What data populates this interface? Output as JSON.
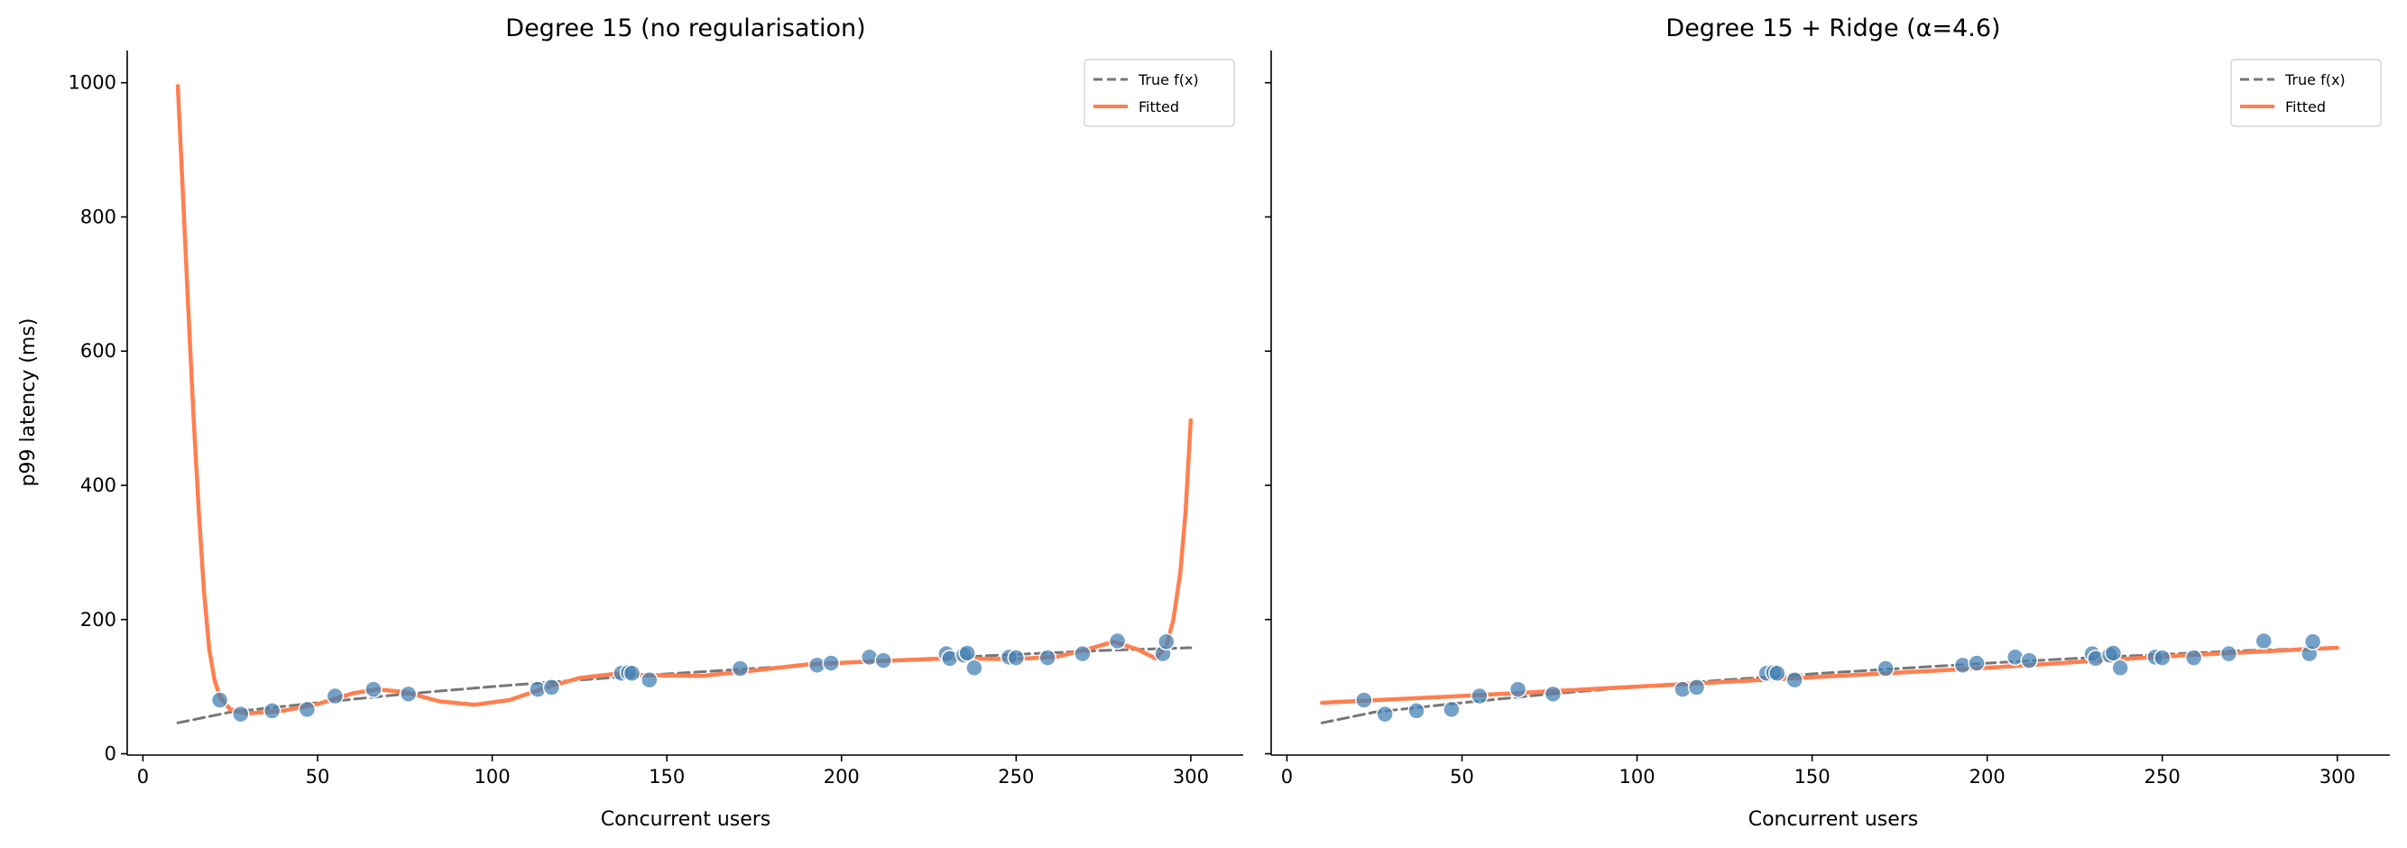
{
  "colors": {
    "fitted": "#ff7f50",
    "true": "#777777",
    "points": "#4682b4"
  },
  "chart_data": [
    {
      "type": "line",
      "title": "Degree 15 (no regularisation)",
      "xlabel": "Concurrent users",
      "ylabel": "p99 latency (ms)",
      "xlim": [
        -4.5,
        315
      ],
      "ylim": [
        -2,
        1048
      ],
      "xticks": [
        0,
        50,
        100,
        150,
        200,
        250,
        300
      ],
      "yticks": [
        0,
        200,
        400,
        600,
        800,
        1000
      ],
      "legend": {
        "placement": "top-right",
        "entries": [
          "True f(x)",
          "Fitted"
        ]
      },
      "series": [
        {
          "name": "True f(x)",
          "style": "dashed",
          "x": [
            10,
            25,
            50,
            75,
            100,
            125,
            150,
            175,
            200,
            225,
            250,
            275,
            300
          ],
          "y": [
            46,
            62,
            76,
            89,
            100,
            110,
            119,
            127,
            135,
            142,
            148,
            154,
            158
          ]
        },
        {
          "name": "Fitted",
          "style": "solid",
          "x": [
            10,
            11.5,
            13,
            14.5,
            16,
            17.5,
            19,
            20.5,
            22,
            25,
            30,
            40,
            50,
            60,
            67,
            75,
            85,
            95,
            105,
            115,
            125,
            135,
            145,
            160,
            175,
            190,
            210,
            230,
            250,
            262,
            270,
            278,
            285,
            290,
            293,
            295,
            297,
            298.5,
            300
          ],
          "y": [
            995,
            830,
            660,
            500,
            360,
            240,
            155,
            110,
            85,
            66,
            60,
            64,
            74,
            90,
            96,
            92,
            78,
            73,
            80,
            98,
            113,
            119,
            117,
            116,
            124,
            133,
            138,
            142,
            141,
            145,
            155,
            167,
            155,
            142,
            160,
            200,
            270,
            360,
            497
          ]
        },
        {
          "name": "Observations",
          "style": "points",
          "x": [
            22,
            28,
            37,
            47,
            55,
            66,
            76,
            113,
            117,
            137,
            139,
            140,
            145,
            171,
            193,
            197,
            208,
            212,
            230,
            231,
            235,
            236,
            238,
            248,
            250,
            259,
            269,
            279,
            292,
            293
          ],
          "y": [
            80,
            59,
            64,
            66,
            86,
            96,
            89,
            96,
            99,
            120,
            121,
            120,
            110,
            127,
            132,
            135,
            144,
            139,
            149,
            142,
            147,
            150,
            128,
            144,
            143,
            143,
            149,
            168,
            149,
            167
          ]
        }
      ]
    },
    {
      "type": "line",
      "title": "Degree 15 + Ridge (α=4.6)",
      "xlabel": "Concurrent users",
      "ylabel": "",
      "xlim": [
        -4.5,
        315
      ],
      "ylim": [
        -2,
        1048
      ],
      "xticks": [
        0,
        50,
        100,
        150,
        200,
        250,
        300
      ],
      "yticks": [
        0,
        200,
        400,
        600,
        800,
        1000
      ],
      "legend": {
        "placement": "top-right",
        "entries": [
          "True f(x)",
          "Fitted"
        ]
      },
      "series": [
        {
          "name": "True f(x)",
          "style": "dashed",
          "x": [
            10,
            25,
            50,
            75,
            100,
            125,
            150,
            175,
            200,
            225,
            250,
            275,
            300
          ],
          "y": [
            46,
            62,
            76,
            89,
            100,
            110,
            119,
            127,
            135,
            142,
            148,
            154,
            158
          ]
        },
        {
          "name": "Fitted",
          "style": "solid",
          "x": [
            10,
            50,
            100,
            150,
            200,
            250,
            300
          ],
          "y": [
            76,
            86,
            100,
            114,
            128,
            145,
            158
          ]
        },
        {
          "name": "Observations",
          "style": "points",
          "x": [
            22,
            28,
            37,
            47,
            55,
            66,
            76,
            113,
            117,
            137,
            139,
            140,
            145,
            171,
            193,
            197,
            208,
            212,
            230,
            231,
            235,
            236,
            238,
            248,
            250,
            259,
            269,
            279,
            292,
            293
          ],
          "y": [
            80,
            59,
            64,
            66,
            86,
            96,
            89,
            96,
            99,
            120,
            121,
            120,
            110,
            127,
            132,
            135,
            144,
            139,
            149,
            142,
            147,
            150,
            128,
            144,
            143,
            143,
            149,
            168,
            149,
            167
          ]
        }
      ]
    }
  ]
}
